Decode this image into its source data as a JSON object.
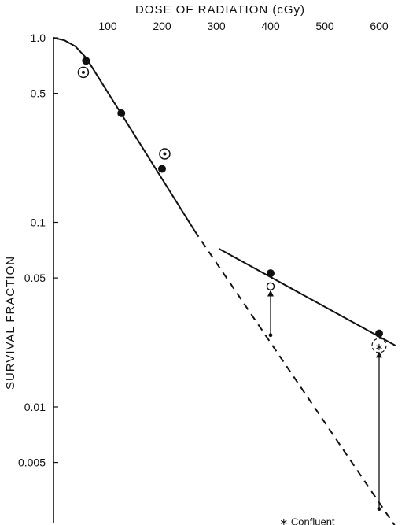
{
  "chart_data": {
    "type": "scatter",
    "title": "",
    "xlabel": "DOSE OF RADIATION (cGy)",
    "ylabel": "SURVIVAL FRACTION",
    "x_axis_position": "top",
    "y_scale": "log",
    "xlim": [
      0,
      645
    ],
    "ylim": [
      0.002,
      1.0
    ],
    "x_ticks": [
      100,
      200,
      300,
      400,
      500,
      600
    ],
    "x_tick_labels": [
      "100",
      "200",
      "300",
      "400",
      "500",
      "600"
    ],
    "y_ticks": [
      1.0,
      0.5,
      0.1,
      0.05,
      0.01,
      0.005
    ],
    "y_tick_labels": [
      "1.0",
      "0.5",
      "0.1",
      "0.05",
      "0.01",
      "0.005"
    ],
    "grid": false,
    "series": [
      {
        "marker": "filled-circle",
        "points": [
          [
            60,
            0.75
          ],
          [
            125,
            0.39
          ],
          [
            200,
            0.195
          ],
          [
            400,
            0.053
          ],
          [
            600,
            0.025
          ]
        ]
      },
      {
        "marker": "circled-dot",
        "points": [
          [
            55,
            0.65
          ],
          [
            205,
            0.235
          ]
        ]
      },
      {
        "marker": "open-circle",
        "points": [
          [
            400,
            0.045
          ]
        ]
      },
      {
        "marker": "small-dot",
        "points": [
          [
            400,
            0.0245
          ],
          [
            600,
            0.0028
          ]
        ]
      },
      {
        "marker": "asterisk-in-dashed-circle",
        "points": [
          [
            600,
            0.0215
          ]
        ]
      }
    ],
    "curves": [
      {
        "style": "solid",
        "points": [
          [
            0,
            1.0
          ],
          [
            20,
            0.97
          ],
          [
            40,
            0.9
          ],
          [
            60,
            0.78
          ],
          [
            260,
            0.09
          ]
        ]
      },
      {
        "style": "dashed",
        "points": [
          [
            260,
            0.09
          ],
          [
            630,
            0.00225
          ]
        ]
      },
      {
        "style": "solid",
        "points": [
          [
            305,
            0.072
          ],
          [
            630,
            0.0215
          ]
        ]
      }
    ],
    "arrows": [
      {
        "from": [
          400,
          0.0245
        ],
        "to": [
          400,
          0.043
        ]
      },
      {
        "from": [
          600,
          0.0028
        ],
        "to": [
          600,
          0.02
        ]
      }
    ],
    "annotations": [
      {
        "text": "Confluent",
        "symbol": "∗",
        "x": 460,
        "y": 0.0024
      }
    ]
  }
}
